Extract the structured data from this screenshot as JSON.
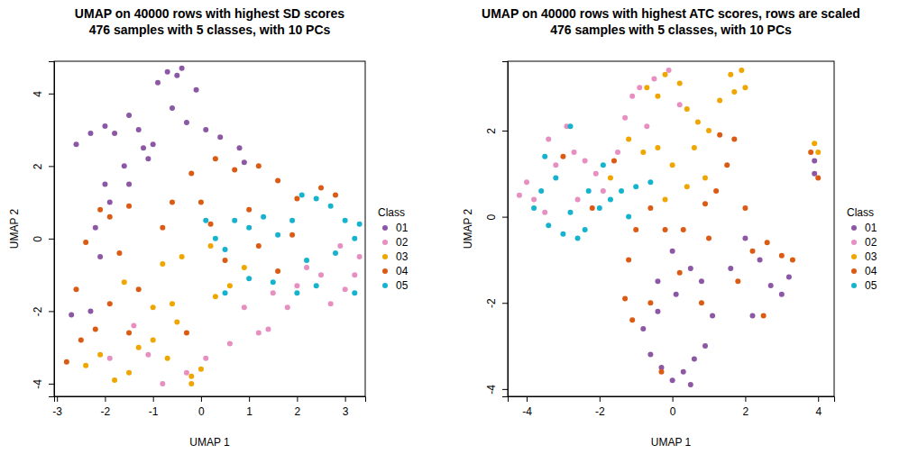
{
  "chart_data": [
    {
      "type": "scatter",
      "title": "UMAP on 40000 rows with highest SD scores",
      "subtitle": "476 samples with 5 classes, with 10 PCs",
      "x_label": "UMAP 1",
      "y_label": "UMAP 2",
      "legend_title": "Class",
      "legend": "right",
      "marker": "circle",
      "xlim": [
        -3.06,
        3.42
      ],
      "ylim": [
        -4.35,
        4.89
      ],
      "xticks": [
        -3,
        -2,
        -1,
        0,
        1,
        2,
        3
      ],
      "yticks": [
        -4,
        -2,
        0,
        2,
        4
      ],
      "series": [
        {
          "name": "01",
          "color": "#8C57A4",
          "x": [
            -2.6,
            -2.3,
            -2.0,
            -1.8,
            -1.5,
            -1.3,
            -1.0,
            -0.9,
            -0.7,
            -0.5,
            -0.4,
            -0.6,
            -0.3,
            0.1,
            0.4,
            0.8,
            -1.2,
            -1.6,
            -2.0,
            -1.9,
            -2.2,
            -2.1,
            -2.7,
            -2.3,
            -1.1,
            0.9,
            -0.1,
            -1.5
          ],
          "values": [
            2.6,
            2.9,
            3.1,
            2.9,
            3.4,
            3.0,
            2.6,
            4.3,
            4.6,
            4.5,
            4.7,
            3.6,
            3.2,
            3.0,
            2.8,
            2.5,
            2.5,
            2.0,
            1.5,
            1.0,
            0.3,
            -0.5,
            -2.1,
            -2.0,
            2.2,
            2.1,
            4.1,
            1.5
          ]
        },
        {
          "name": "02",
          "color": "#E78FC0",
          "x": [
            1.5,
            1.8,
            2.2,
            2.5,
            2.7,
            3.0,
            3.3,
            2.0,
            0.9,
            1.2,
            0.6,
            0.1,
            -0.3,
            -0.8,
            -1.1,
            -1.4,
            -1.9,
            2.9,
            1.4,
            3.2
          ],
          "values": [
            -1.5,
            -1.9,
            -0.8,
            -1.0,
            -1.8,
            -1.4,
            -0.5,
            -1.3,
            -1.9,
            -2.6,
            -2.9,
            -3.3,
            -3.7,
            -4.0,
            -3.2,
            -2.4,
            -3.3,
            -0.2,
            -2.5,
            -1.0
          ]
        },
        {
          "name": "03",
          "color": "#EFA600",
          "x": [
            -2.4,
            -2.1,
            -1.8,
            -1.5,
            -1.3,
            -1.0,
            -0.7,
            -0.5,
            -0.2,
            0.0,
            -0.2,
            -1.0,
            -0.6,
            0.3,
            0.6,
            0.9,
            -1.6,
            0.2,
            -0.4,
            -0.8
          ],
          "values": [
            -3.5,
            -3.2,
            -3.9,
            -3.7,
            -3.0,
            -2.8,
            -3.3,
            -2.3,
            -3.8,
            -3.6,
            -4.0,
            -1.9,
            -1.8,
            -1.6,
            -1.3,
            -0.8,
            -1.2,
            -0.2,
            -0.5,
            -0.7
          ]
        },
        {
          "name": "04",
          "color": "#DB5B14",
          "x": [
            -2.8,
            -2.5,
            -2.2,
            -2.6,
            -2.4,
            -1.9,
            -2.1,
            -1.7,
            -1.5,
            -0.8,
            -0.6,
            -0.2,
            0.3,
            0.7,
            1.2,
            1.6,
            2.0,
            2.5,
            2.8,
            0.0,
            1.0,
            -1.3,
            -1.9,
            0.5,
            1.2,
            1.6,
            1.9,
            -0.3,
            -1.5,
            0.2
          ],
          "values": [
            -3.4,
            -2.8,
            -2.5,
            -1.4,
            -0.1,
            0.6,
            0.8,
            -0.4,
            0.9,
            0.3,
            1.0,
            1.8,
            2.2,
            1.9,
            2.0,
            1.6,
            1.1,
            1.4,
            1.2,
            1.0,
            0.8,
            -1.4,
            -1.8,
            -0.6,
            -0.2,
            -0.9,
            0.1,
            -2.6,
            -2.6,
            0.4
          ]
        },
        {
          "name": "05",
          "color": "#16B3CE",
          "x": [
            0.1,
            0.3,
            0.5,
            0.7,
            1.0,
            1.3,
            1.6,
            1.9,
            2.1,
            2.4,
            2.7,
            3.0,
            3.3,
            3.2,
            2.8,
            2.4,
            2.0,
            1.5,
            1.0,
            0.5,
            3.2,
            2.2
          ],
          "values": [
            0.5,
            0.0,
            -0.3,
            0.5,
            0.3,
            0.6,
            0.1,
            0.5,
            1.2,
            1.1,
            0.9,
            0.5,
            0.4,
            0.0,
            -0.4,
            -1.3,
            -1.5,
            -1.2,
            -1.1,
            -1.5,
            -1.5,
            -0.6
          ]
        }
      ]
    },
    {
      "type": "scatter",
      "title": "UMAP on 40000 rows with highest ATC scores, rows are scaled",
      "subtitle": "476 samples with 5 classes, with 10 PCs",
      "x_label": "UMAP 1",
      "y_label": "UMAP 2",
      "legend_title": "Class",
      "legend": "right",
      "marker": "circle",
      "xlim": [
        -4.52,
        4.44
      ],
      "ylim": [
        -4.17,
        3.61
      ],
      "xticks": [
        -4,
        -2,
        0,
        2,
        4
      ],
      "yticks": [
        -4,
        -2,
        0,
        2
      ],
      "series": [
        {
          "name": "01",
          "color": "#8C57A4",
          "x": [
            0.0,
            -0.3,
            0.3,
            0.6,
            0.9,
            0.5,
            -0.6,
            -0.8,
            -0.4,
            0.1,
            0.5,
            0.0,
            1.1,
            1.6,
            2.0,
            2.4,
            2.7,
            3.0,
            3.2,
            2.2,
            3.9,
            3.9,
            -0.4,
            0.8
          ],
          "values": [
            -3.8,
            -3.5,
            -3.6,
            -3.3,
            -3.0,
            -3.9,
            -3.2,
            -2.6,
            -2.2,
            -1.8,
            -1.2,
            -0.8,
            -2.3,
            -1.2,
            -0.5,
            -1.0,
            -1.6,
            -1.8,
            -1.4,
            -2.3,
            1.0,
            1.3,
            -1.5,
            -1.5
          ]
        },
        {
          "name": "02",
          "color": "#E78FC0",
          "x": [
            -4.2,
            -4.0,
            -3.8,
            -3.5,
            -3.2,
            -2.9,
            -2.7,
            -2.4,
            -2.1,
            -1.9,
            -2.6,
            -1.3,
            -1.1,
            -0.9,
            -0.5,
            -0.1,
            0.2,
            -1.5,
            -3.4,
            -0.7
          ],
          "values": [
            0.5,
            0.8,
            0.4,
            0.1,
            1.2,
            2.1,
            1.5,
            1.3,
            1.0,
            0.6,
            0.4,
            2.3,
            2.8,
            3.0,
            3.2,
            3.4,
            2.6,
            1.5,
            1.8,
            2.1
          ]
        },
        {
          "name": "03",
          "color": "#EFA600",
          "x": [
            -0.7,
            -0.4,
            -0.2,
            0.2,
            0.4,
            0.7,
            1.0,
            1.3,
            1.6,
            1.9,
            2.0,
            1.7,
            -1.2,
            -0.8,
            -0.4,
            0.0,
            0.4,
            0.6,
            -1.7,
            3.9,
            4.0,
            -0.2,
            0.9
          ],
          "values": [
            3.0,
            2.8,
            3.3,
            3.1,
            2.5,
            2.2,
            2.0,
            2.7,
            3.3,
            3.4,
            3.0,
            2.9,
            1.8,
            1.5,
            1.6,
            1.2,
            0.7,
            1.6,
            0.9,
            1.7,
            1.5,
            0.4,
            0.9
          ]
        },
        {
          "name": "04",
          "color": "#DB5B14",
          "x": [
            -3.0,
            -1.6,
            -0.6,
            -1.0,
            -1.2,
            -1.3,
            -1.1,
            -0.6,
            -0.2,
            0.3,
            0.9,
            1.2,
            1.5,
            1.7,
            1.3,
            2.0,
            2.2,
            2.6,
            3.0,
            3.3,
            1.8,
            2.5,
            1.0,
            -0.3,
            0.2,
            4.0,
            3.8,
            -2.2,
            0.8
          ],
          "values": [
            1.4,
            1.3,
            0.2,
            -0.3,
            -1.0,
            -1.9,
            -2.4,
            -2.0,
            -0.3,
            -0.3,
            0.3,
            0.6,
            1.2,
            1.8,
            1.9,
            0.2,
            -0.8,
            -0.6,
            -0.9,
            -1.0,
            -1.5,
            -2.3,
            -0.5,
            -3.6,
            -1.3,
            0.9,
            1.5,
            0.2,
            -2.0
          ]
        },
        {
          "name": "05",
          "color": "#16B3CE",
          "x": [
            -3.8,
            -3.6,
            -3.4,
            -3.0,
            -2.8,
            -2.6,
            -3.2,
            -2.3,
            -2.0,
            -1.7,
            -1.4,
            -1.0,
            -0.6,
            -2.8,
            -1.9,
            -1.2,
            -3.5,
            -2.4
          ],
          "values": [
            0.2,
            0.6,
            -0.2,
            -0.4,
            0.1,
            -0.5,
            0.9,
            0.6,
            0.2,
            0.4,
            0.6,
            0.7,
            0.8,
            2.1,
            1.2,
            0.0,
            1.4,
            -0.3
          ]
        }
      ]
    }
  ]
}
